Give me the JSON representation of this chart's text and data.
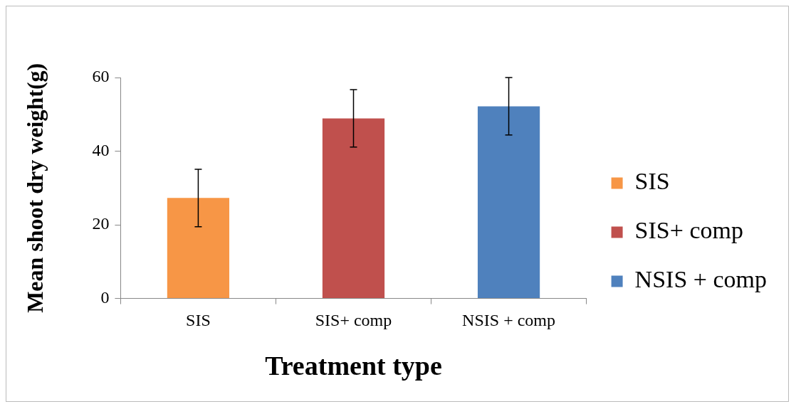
{
  "chart_data": {
    "type": "bar",
    "categories": [
      "SIS",
      "SIS+ comp",
      "NSIS + comp"
    ],
    "series": [
      {
        "name": "SIS",
        "color": "#f79646",
        "values": [
          27.3,
          null,
          null
        ],
        "errors": [
          7.8,
          null,
          null
        ]
      },
      {
        "name": "SIS+ comp",
        "color": "#c0504d",
        "values": [
          null,
          48.9,
          null
        ],
        "errors": [
          null,
          7.8,
          null
        ]
      },
      {
        "name": "NSIS + comp",
        "color": "#4f81bd",
        "values": [
          null,
          null,
          52.2
        ],
        "errors": [
          null,
          null,
          7.8
        ]
      }
    ],
    "xlabel": "Treatment type",
    "ylabel": "Mean shoot dry weight(g)",
    "ylim": [
      0,
      60
    ],
    "yticks": [
      0,
      20,
      40,
      60
    ],
    "grid": false,
    "legend": "right"
  }
}
